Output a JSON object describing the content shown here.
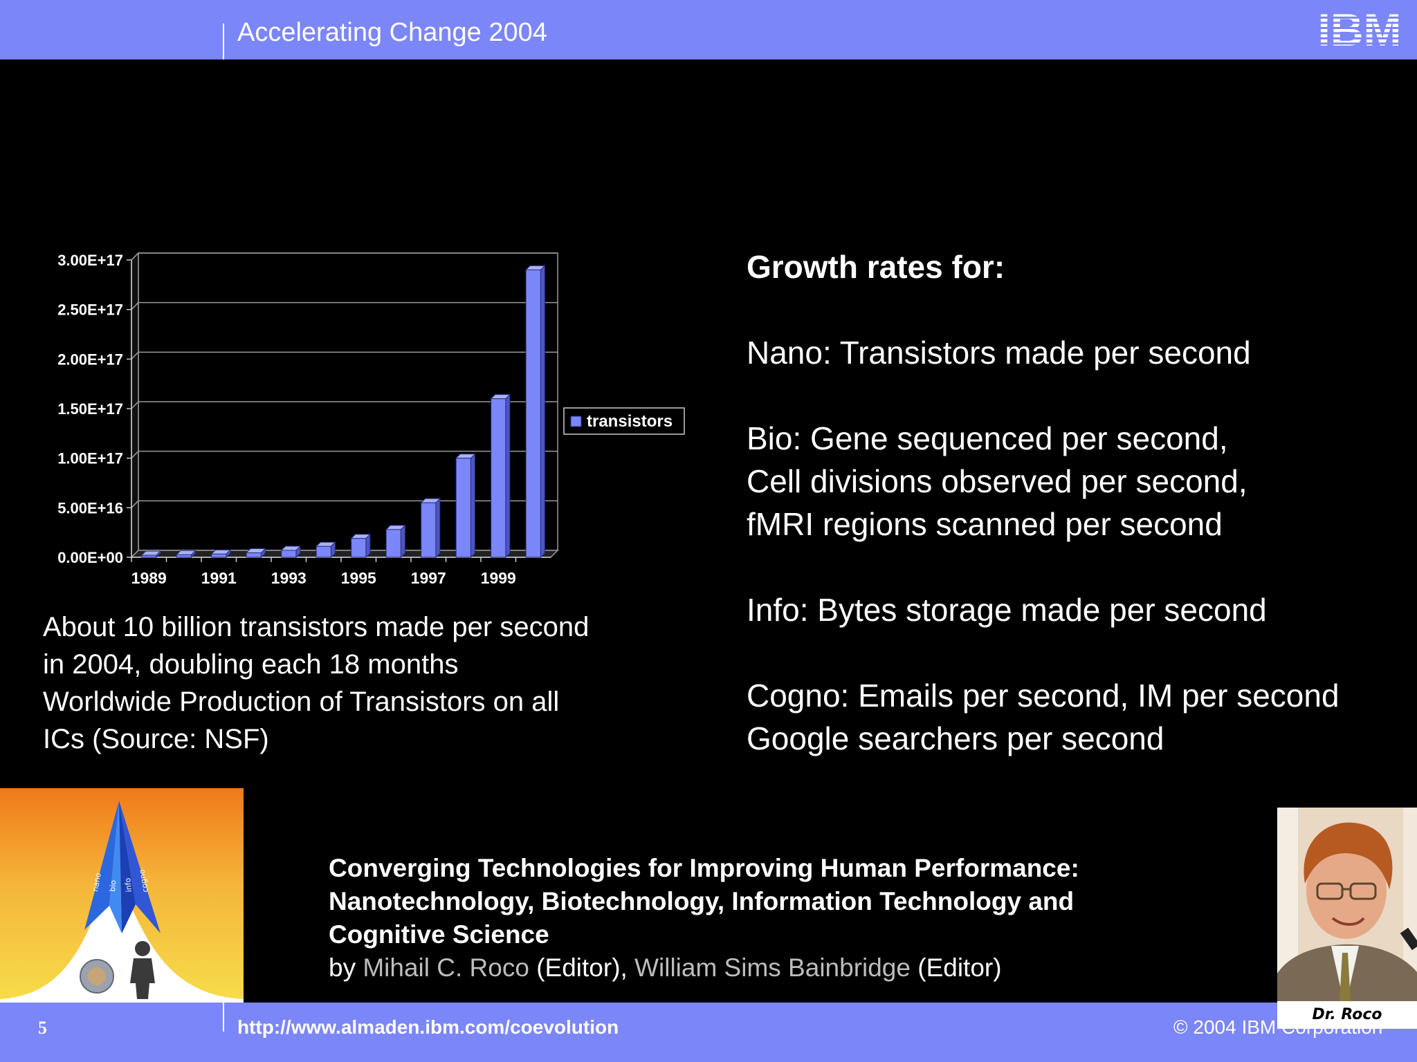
{
  "header": {
    "title": "Accelerating Change 2004",
    "logo_text": "IBM"
  },
  "footer": {
    "page_number": "5",
    "url": "http://www.almaden.ibm.com/coevolution",
    "copyright": "© 2004 IBM Corporation"
  },
  "chart_data": {
    "type": "bar",
    "categories": [
      "1989",
      "1990",
      "1991",
      "1992",
      "1993",
      "1994",
      "1995",
      "1996",
      "1997",
      "1998",
      "1999",
      "2000"
    ],
    "x_tick_labels": [
      "1989",
      "1991",
      "1993",
      "1995",
      "1997",
      "1999"
    ],
    "series": [
      {
        "name": "transistors",
        "values": [
          2000000000000000.0,
          2500000000000000.0,
          3200000000000000.0,
          4500000000000000.0,
          7000000000000000.0,
          1.1e+16,
          1.9e+16,
          2.8e+16,
          5.5e+16,
          1e+17,
          1.6e+17,
          2.9e+17
        ]
      }
    ],
    "y_tick_labels": [
      "0.00E+00",
      "5.00E+16",
      "1.00E+17",
      "1.50E+17",
      "2.00E+17",
      "2.50E+17",
      "3.00E+17"
    ],
    "ylim": [
      0,
      3e+17
    ],
    "grid": true,
    "legend_position": "right",
    "colors": {
      "bar": "#7b86f8"
    }
  },
  "caption": [
    "About 10 billion transistors made per second",
    "in 2004, doubling each 18 months",
    "Worldwide Production of Transistors on all",
    "ICs (Source: NSF)"
  ],
  "growth": {
    "heading": "Growth rates for:",
    "nano": "Nano: Transistors made per second",
    "bio": [
      "Bio: Gene sequenced per second,",
      "Cell divisions observed per second,",
      "fMRI regions scanned per second"
    ],
    "info": "Info: Bytes storage made per second",
    "cogno": [
      "Cogno: Emails per second, IM per second",
      "Google searchers per second"
    ]
  },
  "book": {
    "cover_labels": [
      "nano",
      "bio",
      "info",
      "cogno"
    ],
    "title_lines": [
      "Converging Technologies for Improving Human Performance:",
      "Nanotechnology, Biotechnology, Information Technology and",
      "Cognitive Science"
    ],
    "by": "by",
    "editor1": "Mihail C. Roco",
    "editor_tag1": "(Editor),",
    "editor2": "William Sims Bainbridge",
    "editor_tag2": "(Editor)"
  },
  "photo": {
    "label": "Dr. Roco"
  }
}
